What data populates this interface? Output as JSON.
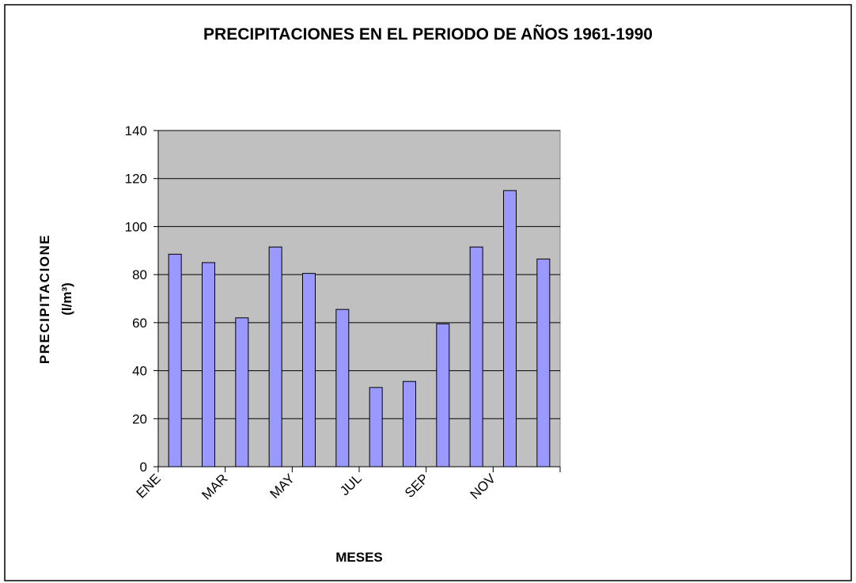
{
  "chart_data": {
    "type": "bar",
    "title": "PRECIPITACIONES EN EL PERIODO DE AÑOS 1961-1990",
    "x_label": "MESES",
    "y_label": [
      "PRECIPITACIONE",
      "(l/m³)"
    ],
    "categories": [
      "ENE",
      null,
      "MAR",
      null,
      "MAY",
      null,
      "JUL",
      null,
      "SEP",
      null,
      "NOV",
      null
    ],
    "values": [
      88.5,
      85,
      62,
      91.5,
      80.5,
      65.5,
      33,
      35.5,
      59.5,
      91.5,
      115,
      86.5
    ],
    "color": "#9999ff",
    "ylim": [
      0,
      140
    ],
    "yticks": [
      0,
      20,
      40,
      60,
      80,
      100,
      120,
      140
    ],
    "grid": true
  }
}
